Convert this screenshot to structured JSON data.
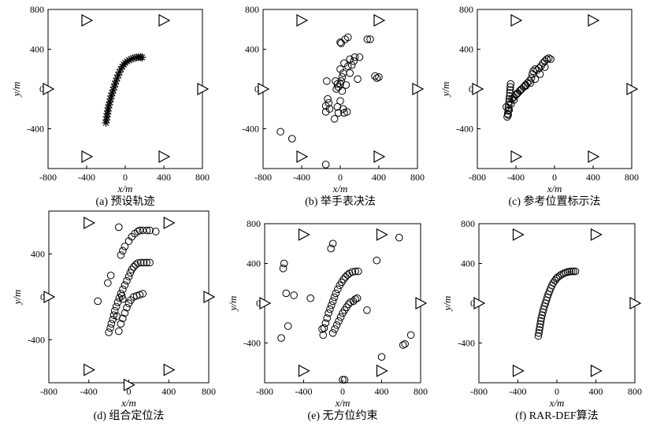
{
  "chart_data": [
    {
      "type": "scatter",
      "caption": "(a) 预设轨迹",
      "xlabel": "x/m",
      "ylabel": "y/m",
      "xlim": [
        -800,
        800
      ],
      "ylim": [
        -800,
        800
      ],
      "xticks": [
        -800,
        -400,
        0,
        400,
        800
      ],
      "yticks": [
        -400,
        0,
        400,
        800
      ],
      "anchors": [
        [
          -400,
          690
        ],
        [
          400,
          690
        ],
        [
          -800,
          0
        ],
        [
          800,
          0
        ],
        [
          -400,
          -680
        ],
        [
          400,
          -680
        ]
      ],
      "marker": "star",
      "points": [
        [
          -200,
          -340
        ],
        [
          -195,
          -310
        ],
        [
          -190,
          -280
        ],
        [
          -185,
          -250
        ],
        [
          -180,
          -220
        ],
        [
          -175,
          -190
        ],
        [
          -168,
          -160
        ],
        [
          -160,
          -130
        ],
        [
          -152,
          -100
        ],
        [
          -145,
          -70
        ],
        [
          -135,
          -40
        ],
        [
          -125,
          -10
        ],
        [
          -115,
          20
        ],
        [
          -105,
          50
        ],
        [
          -95,
          80
        ],
        [
          -85,
          110
        ],
        [
          -72,
          140
        ],
        [
          -60,
          170
        ],
        [
          -45,
          200
        ],
        [
          -30,
          225
        ],
        [
          -15,
          245
        ],
        [
          0,
          262
        ],
        [
          20,
          278
        ],
        [
          40,
          290
        ],
        [
          60,
          300
        ],
        [
          80,
          308
        ],
        [
          100,
          314
        ],
        [
          120,
          318
        ],
        [
          140,
          320
        ],
        [
          160,
          320
        ],
        [
          175,
          318
        ]
      ]
    },
    {
      "type": "scatter",
      "caption": "(b) 举手表决法",
      "xlabel": "x/m",
      "ylabel": "",
      "xlim": [
        -800,
        800
      ],
      "ylim": [
        -800,
        800
      ],
      "xticks": [
        -800,
        -400,
        0,
        400,
        800
      ],
      "yticks": [
        -400,
        0,
        400,
        800
      ],
      "anchors": [
        [
          -400,
          690
        ],
        [
          400,
          690
        ],
        [
          -800,
          0
        ],
        [
          800,
          0
        ],
        [
          -400,
          -680
        ],
        [
          400,
          -680
        ]
      ],
      "marker": "circle",
      "points": [
        [
          -620,
          -430
        ],
        [
          -500,
          -500
        ],
        [
          -150,
          -760
        ],
        [
          -140,
          80
        ],
        [
          -130,
          -100
        ],
        [
          -120,
          -140
        ],
        [
          -150,
          -170
        ],
        [
          -150,
          -230
        ],
        [
          -110,
          -200
        ],
        [
          -60,
          -300
        ],
        [
          -30,
          -180
        ],
        [
          -20,
          -240
        ],
        [
          0,
          -120
        ],
        [
          0,
          50
        ],
        [
          10,
          80
        ],
        [
          0,
          200
        ],
        [
          20,
          120
        ],
        [
          30,
          160
        ],
        [
          40,
          260
        ],
        [
          80,
          230
        ],
        [
          100,
          300
        ],
        [
          50,
          500
        ],
        [
          80,
          520
        ],
        [
          10,
          460
        ],
        [
          0,
          470
        ],
        [
          -30,
          50
        ],
        [
          -50,
          80
        ],
        [
          -20,
          20
        ],
        [
          30,
          -200
        ],
        [
          40,
          -240
        ],
        [
          70,
          -230
        ],
        [
          100,
          160
        ],
        [
          120,
          240
        ],
        [
          140,
          280
        ],
        [
          150,
          320
        ],
        [
          180,
          100
        ],
        [
          200,
          320
        ],
        [
          280,
          500
        ],
        [
          310,
          500
        ],
        [
          360,
          130
        ],
        [
          380,
          110
        ],
        [
          400,
          120
        ],
        [
          60,
          40
        ],
        [
          -40,
          0
        ],
        [
          20,
          -20
        ]
      ]
    },
    {
      "type": "scatter",
      "caption": "(c) 参考位置标示法",
      "xlabel": "x/m",
      "ylabel": "y/m",
      "xlim": [
        -800,
        800
      ],
      "ylim": [
        -800,
        800
      ],
      "xticks": [
        -800,
        -400,
        0,
        400,
        800
      ],
      "yticks": [
        -400,
        0,
        400,
        800
      ],
      "anchors": [
        [
          -400,
          690
        ],
        [
          400,
          690
        ],
        [
          -800,
          0
        ],
        [
          800,
          0
        ],
        [
          -400,
          -680
        ],
        [
          400,
          -680
        ]
      ],
      "marker": "circle",
      "points": [
        [
          -490,
          -280
        ],
        [
          -485,
          -250
        ],
        [
          -480,
          -220
        ],
        [
          -478,
          -190
        ],
        [
          -475,
          -160
        ],
        [
          -470,
          -130
        ],
        [
          -468,
          -100
        ],
        [
          -465,
          -70
        ],
        [
          -462,
          -40
        ],
        [
          -460,
          -10
        ],
        [
          -458,
          20
        ],
        [
          -455,
          50
        ],
        [
          -440,
          -100
        ],
        [
          -420,
          -80
        ],
        [
          -400,
          -60
        ],
        [
          -380,
          -40
        ],
        [
          -360,
          -20
        ],
        [
          -340,
          0
        ],
        [
          -320,
          20
        ],
        [
          -300,
          40
        ],
        [
          -280,
          60
        ],
        [
          -260,
          80
        ],
        [
          -240,
          110
        ],
        [
          -230,
          150
        ],
        [
          -220,
          180
        ],
        [
          -200,
          200
        ],
        [
          -180,
          190
        ],
        [
          -160,
          210
        ],
        [
          -140,
          230
        ],
        [
          -120,
          260
        ],
        [
          -100,
          280
        ],
        [
          -80,
          300
        ],
        [
          -60,
          310
        ],
        [
          -40,
          300
        ],
        [
          -100,
          220
        ],
        [
          -150,
          150
        ],
        [
          -200,
          100
        ],
        [
          -250,
          60
        ],
        [
          -300,
          30
        ],
        [
          -350,
          -10
        ],
        [
          -390,
          -50
        ],
        [
          -420,
          -110
        ],
        [
          -450,
          -150
        ],
        [
          -470,
          -210
        ],
        [
          -480,
          -260
        ],
        [
          -500,
          -180
        ]
      ]
    },
    {
      "type": "scatter",
      "caption": "(d) 组合定位法",
      "xlabel": "x/m",
      "ylabel": "y/m",
      "xlim": [
        -800,
        800
      ],
      "ylim": [
        -800,
        800
      ],
      "xticks": [
        -800,
        -400,
        0,
        400,
        800
      ],
      "yticks": [
        -400,
        0,
        400
      ],
      "anchors": [
        [
          -400,
          690
        ],
        [
          400,
          690
        ],
        [
          -800,
          0
        ],
        [
          800,
          0
        ],
        [
          -400,
          -680
        ],
        [
          400,
          -680
        ],
        [
          0,
          -820
        ]
      ],
      "marker": "circle",
      "points": [
        [
          -310,
          -40
        ],
        [
          -210,
          130
        ],
        [
          -180,
          200
        ],
        [
          -100,
          650
        ],
        [
          -80,
          390
        ],
        [
          -60,
          430
        ],
        [
          -40,
          470
        ],
        [
          0,
          520
        ],
        [
          30,
          560
        ],
        [
          60,
          590
        ],
        [
          90,
          610
        ],
        [
          110,
          620
        ],
        [
          140,
          620
        ],
        [
          180,
          620
        ],
        [
          210,
          620
        ],
        [
          270,
          610
        ],
        [
          -200,
          -330
        ],
        [
          -185,
          -290
        ],
        [
          -175,
          -250
        ],
        [
          -160,
          -210
        ],
        [
          -150,
          -170
        ],
        [
          -140,
          -130
        ],
        [
          -125,
          -90
        ],
        [
          -110,
          -50
        ],
        [
          -95,
          -10
        ],
        [
          -80,
          30
        ],
        [
          -60,
          70
        ],
        [
          -40,
          110
        ],
        [
          -20,
          150
        ],
        [
          0,
          190
        ],
        [
          15,
          225
        ],
        [
          30,
          255
        ],
        [
          50,
          280
        ],
        [
          70,
          300
        ],
        [
          90,
          315
        ],
        [
          120,
          320
        ],
        [
          150,
          320
        ],
        [
          180,
          320
        ],
        [
          210,
          320
        ],
        [
          -100,
          -320
        ],
        [
          -80,
          -250
        ],
        [
          -60,
          -200
        ],
        [
          -40,
          -150
        ],
        [
          -20,
          -100
        ],
        [
          0,
          -60
        ],
        [
          20,
          -30
        ],
        [
          50,
          0
        ],
        [
          80,
          10
        ],
        [
          110,
          20
        ],
        [
          140,
          30
        ],
        [
          -60,
          -20
        ],
        [
          -70,
          10
        ],
        [
          -120,
          -180
        ]
      ]
    },
    {
      "type": "scatter",
      "caption": "(e) 无方位约束",
      "xlabel": "x/m",
      "ylabel": "y/m",
      "xlim": [
        -800,
        800
      ],
      "ylim": [
        -800,
        800
      ],
      "xticks": [
        -800,
        -400,
        0,
        400,
        800
      ],
      "yticks": [
        -400,
        0,
        400,
        800
      ],
      "anchors": [
        [
          -400,
          690
        ],
        [
          400,
          690
        ],
        [
          -800,
          0
        ],
        [
          800,
          0
        ],
        [
          -400,
          -680
        ],
        [
          400,
          -680
        ]
      ],
      "marker": "circle",
      "points": [
        [
          -630,
          -350
        ],
        [
          -610,
          350
        ],
        [
          -600,
          400
        ],
        [
          -580,
          100
        ],
        [
          -560,
          -230
        ],
        [
          -500,
          80
        ],
        [
          -330,
          50
        ],
        [
          -120,
          550
        ],
        [
          -100,
          600
        ],
        [
          -210,
          -260
        ],
        [
          -200,
          -320
        ],
        [
          -190,
          -250
        ],
        [
          -175,
          -200
        ],
        [
          -160,
          -150
        ],
        [
          -145,
          -100
        ],
        [
          -130,
          -60
        ],
        [
          -115,
          -20
        ],
        [
          -100,
          20
        ],
        [
          -85,
          60
        ],
        [
          -70,
          100
        ],
        [
          -50,
          140
        ],
        [
          -30,
          180
        ],
        [
          -10,
          210
        ],
        [
          10,
          240
        ],
        [
          30,
          265
        ],
        [
          50,
          285
        ],
        [
          70,
          300
        ],
        [
          100,
          315
        ],
        [
          130,
          320
        ],
        [
          160,
          320
        ],
        [
          -100,
          -300
        ],
        [
          -80,
          -260
        ],
        [
          -60,
          -220
        ],
        [
          -40,
          -180
        ],
        [
          -20,
          -140
        ],
        [
          0,
          -100
        ],
        [
          20,
          -70
        ],
        [
          40,
          -40
        ],
        [
          60,
          -10
        ],
        [
          80,
          10
        ],
        [
          110,
          20
        ],
        [
          130,
          40
        ],
        [
          150,
          50
        ],
        [
          250,
          -70
        ],
        [
          350,
          430
        ],
        [
          400,
          -540
        ],
        [
          0,
          -770
        ],
        [
          20,
          -770
        ],
        [
          580,
          660
        ],
        [
          620,
          -420
        ],
        [
          640,
          -410
        ],
        [
          700,
          -320
        ]
      ]
    },
    {
      "type": "scatter",
      "caption": "(f) RAR-DEF算法",
      "xlabel": "x/m",
      "ylabel": "y/m",
      "xlim": [
        -800,
        800
      ],
      "ylim": [
        -800,
        800
      ],
      "xticks": [
        -800,
        -400,
        0,
        400,
        800
      ],
      "yticks": [
        -400,
        0,
        400,
        800
      ],
      "anchors": [
        [
          -400,
          690
        ],
        [
          400,
          690
        ],
        [
          -800,
          0
        ],
        [
          800,
          0
        ],
        [
          -400,
          -680
        ],
        [
          400,
          -680
        ]
      ],
      "marker": "circle",
      "points": [
        [
          -190,
          -330
        ],
        [
          -185,
          -300
        ],
        [
          -180,
          -270
        ],
        [
          -175,
          -240
        ],
        [
          -170,
          -210
        ],
        [
          -165,
          -180
        ],
        [
          -160,
          -150
        ],
        [
          -152,
          -120
        ],
        [
          -145,
          -90
        ],
        [
          -137,
          -60
        ],
        [
          -128,
          -30
        ],
        [
          -118,
          0
        ],
        [
          -108,
          30
        ],
        [
          -98,
          60
        ],
        [
          -88,
          90
        ],
        [
          -76,
          120
        ],
        [
          -64,
          150
        ],
        [
          -50,
          180
        ],
        [
          -36,
          205
        ],
        [
          -20,
          228
        ],
        [
          -5,
          248
        ],
        [
          10,
          262
        ],
        [
          30,
          276
        ],
        [
          50,
          290
        ],
        [
          70,
          300
        ],
        [
          90,
          308
        ],
        [
          110,
          314
        ],
        [
          130,
          318
        ],
        [
          150,
          320
        ],
        [
          170,
          320
        ],
        [
          190,
          320
        ]
      ]
    }
  ]
}
